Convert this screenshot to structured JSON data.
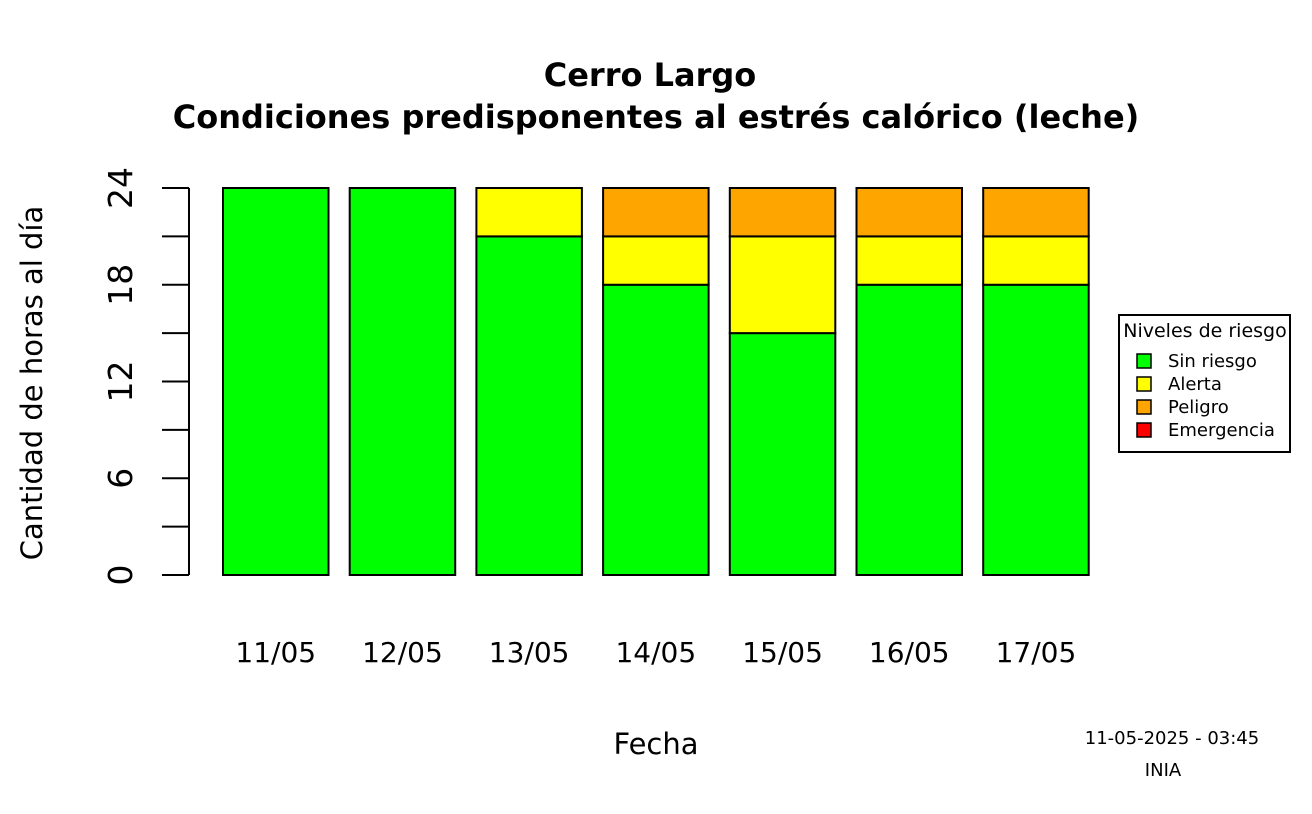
{
  "chart_data": {
    "type": "bar",
    "stacked": true,
    "title": "Cerro Largo",
    "subtitle": "Condiciones predisponentes al estrés calórico (leche)",
    "xlabel": "Fecha",
    "ylabel": "Cantidad de horas al día",
    "ylim": [
      0,
      24
    ],
    "yticks": [
      0,
      6,
      12,
      18,
      24
    ],
    "yticks_minor": [
      3,
      9,
      15,
      21
    ],
    "categories": [
      "11/05",
      "12/05",
      "13/05",
      "14/05",
      "15/05",
      "16/05",
      "17/05"
    ],
    "series": [
      {
        "name": "Sin riesgo",
        "color": "#00ff00",
        "values": [
          24,
          24,
          21,
          18,
          15,
          18,
          18
        ]
      },
      {
        "name": "Alerta",
        "color": "#ffff00",
        "values": [
          0,
          0,
          3,
          3,
          6,
          3,
          3
        ]
      },
      {
        "name": "Peligro",
        "color": "#ffa500",
        "values": [
          0,
          0,
          0,
          3,
          3,
          3,
          3
        ]
      },
      {
        "name": "Emergencia",
        "color": "#ff0000",
        "values": [
          0,
          0,
          0,
          0,
          0,
          0,
          0
        ]
      }
    ],
    "legend": {
      "title": "Niveles de riesgo",
      "position": "right"
    },
    "grid": false
  },
  "footer": {
    "timestamp": "11-05-2025 - 03:45",
    "source": "INIA"
  }
}
